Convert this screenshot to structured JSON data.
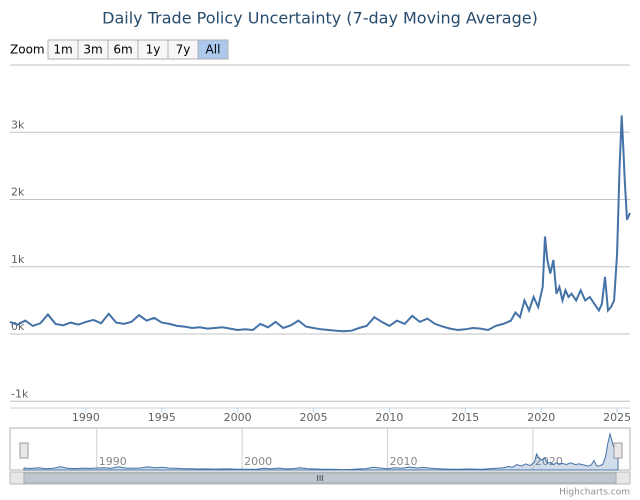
{
  "chart_data": {
    "type": "line",
    "title": "Daily Trade Policy Uncertainty (7-day Moving Average)",
    "range_selector": {
      "label": "Zoom",
      "buttons": [
        "1m",
        "3m",
        "6m",
        "1y",
        "7y",
        "All"
      ],
      "selected": 5
    },
    "credit": "Highcharts.com",
    "color": "#4572a7",
    "x": [
      1985,
      1985.5,
      1986,
      1986.5,
      1987,
      1987.5,
      1988,
      1988.5,
      1989,
      1989.5,
      1990,
      1990.5,
      1991,
      1991.5,
      1992,
      1992.5,
      1993,
      1993.5,
      1994,
      1994.5,
      1995,
      1995.5,
      1996,
      1996.5,
      1997,
      1997.5,
      1998,
      1998.5,
      1999,
      1999.5,
      2000,
      2000.5,
      2001,
      2001.5,
      2002,
      2002.5,
      2003,
      2003.5,
      2004,
      2004.5,
      2005,
      2005.5,
      2006,
      2006.5,
      2007,
      2007.5,
      2008,
      2008.5,
      2009,
      2009.5,
      2010,
      2010.5,
      2011,
      2011.5,
      2012,
      2012.5,
      2013,
      2013.5,
      2014,
      2014.5,
      2015,
      2015.5,
      2016,
      2016.5,
      2017,
      2017.5,
      2018,
      2018.3,
      2018.6,
      2018.9,
      2019.2,
      2019.5,
      2019.8,
      2020.1,
      2020.25,
      2020.4,
      2020.6,
      2020.8,
      2021,
      2021.2,
      2021.4,
      2021.6,
      2021.8,
      2022,
      2022.3,
      2022.6,
      2022.9,
      2023.2,
      2023.5,
      2023.8,
      2024,
      2024.2,
      2024.4,
      2024.6,
      2024.8,
      2025,
      2025.15,
      2025.3,
      2025.4,
      2025.5,
      2025.65,
      2025.85
    ],
    "values": [
      180,
      140,
      200,
      120,
      160,
      290,
      150,
      130,
      170,
      140,
      180,
      210,
      160,
      300,
      170,
      150,
      180,
      280,
      200,
      240,
      170,
      150,
      120,
      110,
      90,
      100,
      80,
      90,
      100,
      80,
      60,
      70,
      60,
      150,
      100,
      180,
      90,
      130,
      200,
      110,
      90,
      70,
      60,
      50,
      40,
      50,
      90,
      120,
      250,
      180,
      120,
      200,
      150,
      270,
      180,
      230,
      150,
      110,
      80,
      60,
      70,
      90,
      80,
      60,
      120,
      150,
      200,
      320,
      250,
      500,
      350,
      550,
      400,
      700,
      1450,
      1100,
      900,
      1100,
      600,
      700,
      500,
      650,
      550,
      600,
      500,
      650,
      500,
      550,
      450,
      350,
      450,
      850,
      350,
      400,
      500,
      1200,
      2400,
      3250,
      2800,
      2300,
      1700,
      1800
    ],
    "xlim": [
      1985,
      2025.85
    ],
    "xticks": [
      1990,
      1995,
      2000,
      2005,
      2010,
      2015,
      2020,
      2025
    ],
    "ylim": [
      -1100,
      4000
    ],
    "yticks": [
      {
        "value": -1000,
        "label": "-1k"
      },
      {
        "value": 0,
        "label": "0k"
      },
      {
        "value": 1000,
        "label": "1k"
      },
      {
        "value": 2000,
        "label": "2k"
      },
      {
        "value": 3000,
        "label": "3k"
      }
    ],
    "grid": true,
    "navigator_ticks": [
      1990,
      2000,
      2010,
      2020
    ]
  }
}
